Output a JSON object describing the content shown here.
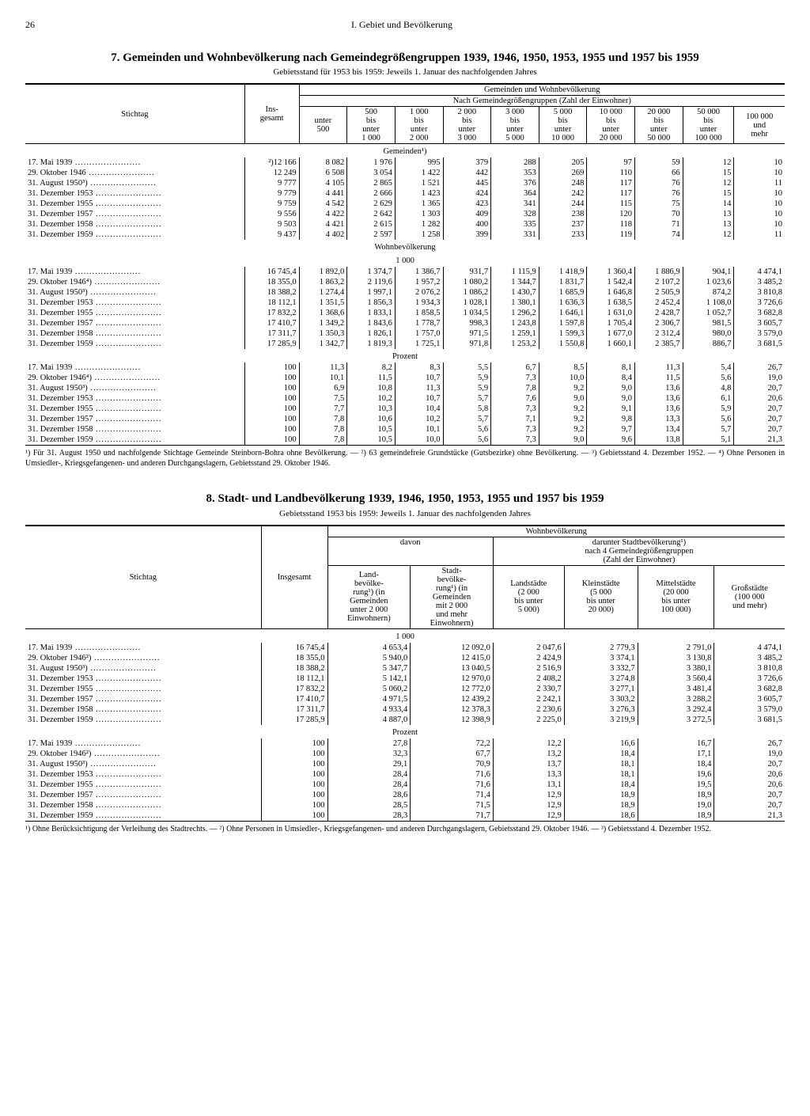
{
  "page": "26",
  "sectionHead": "I. Gebiet und Bevölkerung",
  "table7": {
    "title": "7. Gemeinden und Wohnbevölkerung nach Gemeindegrößengruppen 1939, 1946, 1950, 1953, 1955 und 1957 bis 1959",
    "subtitle": "Gebietsstand für 1953 bis 1959: Jeweils 1. Januar des nachfolgenden Jahres",
    "h_top": "Gemeinden und Wohnbevölkerung",
    "h_sub": "Nach Gemeindegrößengruppen (Zahl der Einwohner)",
    "h_stichtag": "Stichtag",
    "h_ins": "Ins-\ngesamt",
    "cols": [
      "unter\n500",
      "500\nbis\nunter\n1 000",
      "1 000\nbis\nunter\n2 000",
      "2 000\nbis\nunter\n3 000",
      "3 000\nbis\nunter\n5 000",
      "5 000\nbis\nunter\n10 000",
      "10 000\nbis\nunter\n20 000",
      "20 000\nbis\nunter\n50 000",
      "50 000\nbis\nunter\n100 000",
      "100 000\nund\nmehr"
    ],
    "sections": [
      {
        "label": "Gemeinden¹)",
        "rows": [
          {
            "d": "17. Mai 1939",
            "v": [
              "²)12 166",
              "8 082",
              "1 976",
              "995",
              "379",
              "288",
              "205",
              "97",
              "59",
              "12",
              "10"
            ]
          },
          {
            "d": "29. Oktober 1946",
            "v": [
              "12 249",
              "6 508",
              "3 054",
              "1 422",
              "442",
              "353",
              "269",
              "110",
              "66",
              "15",
              "10"
            ]
          },
          {
            "d": "31. August 1950³)",
            "v": [
              "9 777",
              "4 105",
              "2 865",
              "1 521",
              "445",
              "376",
              "248",
              "117",
              "76",
              "12",
              "11"
            ]
          },
          {
            "d": "31. Dezember 1953",
            "v": [
              "9 779",
              "4 441",
              "2 666",
              "1 423",
              "424",
              "364",
              "242",
              "117",
              "76",
              "15",
              "10"
            ]
          },
          {
            "d": "31. Dezember 1955",
            "v": [
              "9 759",
              "4 542",
              "2 629",
              "1 365",
              "423",
              "341",
              "244",
              "115",
              "75",
              "14",
              "10"
            ]
          },
          {
            "d": "31. Dezember 1957",
            "v": [
              "9 556",
              "4 422",
              "2 642",
              "1 303",
              "409",
              "328",
              "238",
              "120",
              "70",
              "13",
              "10"
            ]
          },
          {
            "d": "31. Dezember 1958",
            "v": [
              "9 503",
              "4 421",
              "2 615",
              "1 282",
              "400",
              "335",
              "237",
              "118",
              "71",
              "13",
              "10"
            ]
          },
          {
            "d": "31. Dezember 1959",
            "v": [
              "9 437",
              "4 402",
              "2 597",
              "1 258",
              "399",
              "331",
              "233",
              "119",
              "74",
              "12",
              "11"
            ]
          }
        ]
      },
      {
        "label": "Wohnbevölkerung",
        "sublabel": "1 000",
        "rows": [
          {
            "d": "17. Mai 1939",
            "v": [
              "16 745,4",
              "1 892,0",
              "1 374,7",
              "1 386,7",
              "931,7",
              "1 115,9",
              "1 418,9",
              "1 360,4",
              "1 886,9",
              "904,1",
              "4 474,1"
            ]
          },
          {
            "d": "29. Oktober 1946⁴)",
            "v": [
              "18 355,0",
              "1 863,2",
              "2 119,6",
              "1 957,2",
              "1 080,2",
              "1 344,7",
              "1 831,7",
              "1 542,4",
              "2 107,2",
              "1 023,6",
              "3 485,2"
            ]
          },
          {
            "d": "31. August 1950³)",
            "v": [
              "18 388,2",
              "1 274,4",
              "1 997,1",
              "2 076,2",
              "1 086,2",
              "1 430,7",
              "1 685,9",
              "1 646,8",
              "2 505,9",
              "874,2",
              "3 810,8"
            ]
          },
          {
            "d": "31. Dezember 1953",
            "v": [
              "18 112,1",
              "1 351,5",
              "1 856,3",
              "1 934,3",
              "1 028,1",
              "1 380,1",
              "1 636,3",
              "1 638,5",
              "2 452,4",
              "1 108,0",
              "3 726,6"
            ]
          },
          {
            "d": "31. Dezember 1955",
            "v": [
              "17 832,2",
              "1 368,6",
              "1 833,1",
              "1 858,5",
              "1 034,5",
              "1 296,2",
              "1 646,1",
              "1 631,0",
              "2 428,7",
              "1 052,7",
              "3 682,8"
            ]
          },
          {
            "d": "31. Dezember 1957",
            "v": [
              "17 410,7",
              "1 349,2",
              "1 843,6",
              "1 778,7",
              "998,3",
              "1 243,8",
              "1 597,8",
              "1 705,4",
              "2 306,7",
              "981,5",
              "3 605,7"
            ]
          },
          {
            "d": "31. Dezember 1958",
            "v": [
              "17 311,7",
              "1 350,3",
              "1 826,1",
              "1 757,0",
              "971,5",
              "1 259,1",
              "1 599,3",
              "1 677,0",
              "2 312,4",
              "980,0",
              "3 579,0"
            ]
          },
          {
            "d": "31. Dezember 1959",
            "v": [
              "17 285,9",
              "1 342,7",
              "1 819,3",
              "1 725,1",
              "971,8",
              "1 253,2",
              "1 550,8",
              "1 660,1",
              "2 385,7",
              "886,7",
              "3 681,5"
            ]
          }
        ]
      },
      {
        "label": "Prozent",
        "rows": [
          {
            "d": "17. Mai 1939",
            "v": [
              "100",
              "11,3",
              "8,2",
              "8,3",
              "5,5",
              "6,7",
              "8,5",
              "8,1",
              "11,3",
              "5,4",
              "26,7"
            ]
          },
          {
            "d": "29. Oktober 1946⁴)",
            "v": [
              "100",
              "10,1",
              "11,5",
              "10,7",
              "5,9",
              "7,3",
              "10,0",
              "8,4",
              "11,5",
              "5,6",
              "19,0"
            ]
          },
          {
            "d": "31. August 1950³)",
            "v": [
              "100",
              "6,9",
              "10,8",
              "11,3",
              "5,9",
              "7,8",
              "9,2",
              "9,0",
              "13,6",
              "4,8",
              "20,7"
            ]
          },
          {
            "d": "31. Dezember 1953",
            "v": [
              "100",
              "7,5",
              "10,2",
              "10,7",
              "5,7",
              "7,6",
              "9,0",
              "9,0",
              "13,6",
              "6,1",
              "20,6"
            ]
          },
          {
            "d": "31. Dezember 1955",
            "v": [
              "100",
              "7,7",
              "10,3",
              "10,4",
              "5,8",
              "7,3",
              "9,2",
              "9,1",
              "13,6",
              "5,9",
              "20,7"
            ]
          },
          {
            "d": "31. Dezember 1957",
            "v": [
              "100",
              "7,8",
              "10,6",
              "10,2",
              "5,7",
              "7,1",
              "9,2",
              "9,8",
              "13,3",
              "5,6",
              "20,7"
            ]
          },
          {
            "d": "31. Dezember 1958",
            "v": [
              "100",
              "7,8",
              "10,5",
              "10,1",
              "5,6",
              "7,3",
              "9,2",
              "9,7",
              "13,4",
              "5,7",
              "20,7"
            ]
          },
          {
            "d": "31. Dezember 1959",
            "v": [
              "100",
              "7,8",
              "10,5",
              "10,0",
              "5,6",
              "7,3",
              "9,0",
              "9,6",
              "13,8",
              "5,1",
              "21,3"
            ]
          }
        ]
      }
    ],
    "footnote": "¹) Für 31. August 1950 und nachfolgende Stichtage Gemeinde Steinborn-Bohra ohne Bevölkerung. — ²) 63 gemeindefreie Grundstücke (Gutsbezirke) ohne Bevölkerung. — ³) Gebietsstand 4. Dezember 1952. — ⁴) Ohne Personen in Umsiedler-, Kriegsgefangenen- und anderen Durchgangslagern, Gebietsstand 29. Oktober 1946."
  },
  "table8": {
    "title": "8. Stadt- und Landbevölkerung 1939, 1946, 1950, 1953, 1955 und 1957 bis 1959",
    "subtitle": "Gebietsstand 1953 bis 1959: Jeweils 1. Januar des nachfolgenden Jahres",
    "h_top": "Wohnbevölkerung",
    "h_davon": "davon",
    "h_darunter": "darunter Stadtbevölkerung¹)\nnach 4 Gemeindegrößengruppen\n(Zahl der Einwohner)",
    "h_stichtag": "Stichtag",
    "h_ins": "Insgesamt",
    "cols": [
      "Land-\nbevölke-\nrung¹) (in\nGemeinden\nunter 2 000\nEinwohnern)",
      "Stadt-\nbevölke-\nrung¹) (in\nGemeinden\nmit 2 000\nund mehr\nEinwohnern)",
      "Landstädte\n(2 000\nbis unter\n5 000)",
      "Kleinstädte\n(5 000\nbis unter\n20 000)",
      "Mittelstädte\n(20 000\nbis unter\n100 000)",
      "Großstädte\n(100 000\nund mehr)"
    ],
    "sections": [
      {
        "label": "1 000",
        "rows": [
          {
            "d": "17. Mai 1939",
            "v": [
              "16 745,4",
              "4 653,4",
              "12 092,0",
              "2 047,6",
              "2 779,3",
              "2 791,0",
              "4 474,1"
            ]
          },
          {
            "d": "29. Oktober 1946²)",
            "v": [
              "18 355,0",
              "5 940,0",
              "12 415,0",
              "2 424,9",
              "3 374,1",
              "3 130,8",
              "3 485,2"
            ]
          },
          {
            "d": "31. August 1950³)",
            "v": [
              "18 388,2",
              "5 347,7",
              "13 040,5",
              "2 516,9",
              "3 332,7",
              "3 380,1",
              "3 810,8"
            ]
          },
          {
            "d": "31. Dezember 1953",
            "v": [
              "18 112,1",
              "5 142,1",
              "12 970,0",
              "2 408,2",
              "3 274,8",
              "3 560,4",
              "3 726,6"
            ]
          },
          {
            "d": "31. Dezember 1955",
            "v": [
              "17 832,2",
              "5 060,2",
              "12 772,0",
              "2 330,7",
              "3 277,1",
              "3 481,4",
              "3 682,8"
            ]
          },
          {
            "d": "31. Dezember 1957",
            "v": [
              "17 410,7",
              "4 971,5",
              "12 439,2",
              "2 242,1",
              "3 303,2",
              "3 288,2",
              "3 605,7"
            ]
          },
          {
            "d": "31. Dezember 1958",
            "v": [
              "17 311,7",
              "4 933,4",
              "12 378,3",
              "2 230,6",
              "3 276,3",
              "3 292,4",
              "3 579,0"
            ]
          },
          {
            "d": "31. Dezember 1959",
            "v": [
              "17 285,9",
              "4 887,0",
              "12 398,9",
              "2 225,0",
              "3 219,9",
              "3 272,5",
              "3 681,5"
            ]
          }
        ]
      },
      {
        "label": "Prozent",
        "rows": [
          {
            "d": "17. Mai 1939",
            "v": [
              "100",
              "27,8",
              "72,2",
              "12,2",
              "16,6",
              "16,7",
              "26,7"
            ]
          },
          {
            "d": "29. Oktober 1946²)",
            "v": [
              "100",
              "32,3",
              "67,7",
              "13,2",
              "18,4",
              "17,1",
              "19,0"
            ]
          },
          {
            "d": "31. August 1950³)",
            "v": [
              "100",
              "29,1",
              "70,9",
              "13,7",
              "18,1",
              "18,4",
              "20,7"
            ]
          },
          {
            "d": "31. Dezember 1953",
            "v": [
              "100",
              "28,4",
              "71,6",
              "13,3",
              "18,1",
              "19,6",
              "20,6"
            ]
          },
          {
            "d": "31. Dezember 1955",
            "v": [
              "100",
              "28,4",
              "71,6",
              "13,1",
              "18,4",
              "19,5",
              "20,6"
            ]
          },
          {
            "d": "31. Dezember 1957",
            "v": [
              "100",
              "28,6",
              "71,4",
              "12,9",
              "18,9",
              "18,9",
              "20,7"
            ]
          },
          {
            "d": "31. Dezember 1958",
            "v": [
              "100",
              "28,5",
              "71,5",
              "12,9",
              "18,9",
              "19,0",
              "20,7"
            ]
          },
          {
            "d": "31. Dezember 1959",
            "v": [
              "100",
              "28,3",
              "71,7",
              "12,9",
              "18,6",
              "18,9",
              "21,3"
            ]
          }
        ]
      }
    ],
    "footnote": "¹) Ohne Berücksichtigung der Verleihung des Stadtrechts. — ²) Ohne Personen in Umsiedler-, Kriegsgefangenen- und anderen Durchgangslagern, Gebietsstand 29. Oktober 1946. — ³) Gebietsstand 4. Dezember 1952."
  }
}
